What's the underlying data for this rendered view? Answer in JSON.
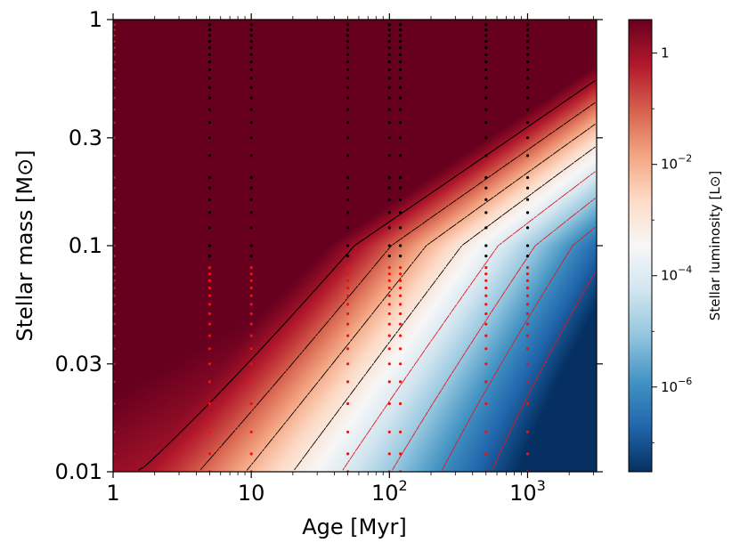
{
  "chart_data": {
    "type": "heatmap",
    "title": "",
    "xlabel": "Age  [Myr]",
    "ylabel": "Stellar mass [M⊙]",
    "xscale": "log",
    "yscale": "log",
    "xlim": [
      1,
      3160
    ],
    "ylim": [
      0.01,
      1
    ],
    "x_ticks": [
      {
        "value": 1,
        "label": "1"
      },
      {
        "value": 10,
        "label": "10"
      },
      {
        "value": 100,
        "label": "10",
        "exp": "2"
      },
      {
        "value": 1000,
        "label": "10",
        "exp": "3"
      }
    ],
    "y_ticks": [
      {
        "value": 1,
        "label": "1"
      },
      {
        "value": 0.3,
        "label": "0.3"
      },
      {
        "value": 0.1,
        "label": "0.1"
      },
      {
        "value": 0.03,
        "label": "0.03"
      },
      {
        "value": 0.01,
        "label": "0.01"
      }
    ],
    "colorbar": {
      "label": "Stellar luminosity [L⊙]",
      "scale": "log",
      "colormap": "RdBu_r",
      "lim": [
        3e-08,
        4
      ],
      "ticks": [
        {
          "value": 1,
          "label": "1"
        },
        {
          "value": 0.01,
          "label": "10",
          "exp": "−2"
        },
        {
          "value": 0.0001,
          "label": "10",
          "exp": "−4"
        },
        {
          "value": 1e-06,
          "label": "10",
          "exp": "−6"
        }
      ]
    },
    "colormap_stops": [
      {
        "t": 0.0,
        "color": "#053061"
      },
      {
        "t": 0.1,
        "color": "#2166ac"
      },
      {
        "t": 0.2,
        "color": "#4393c3"
      },
      {
        "t": 0.3,
        "color": "#92c5de"
      },
      {
        "t": 0.4,
        "color": "#d1e5f0"
      },
      {
        "t": 0.5,
        "color": "#f7f7f7"
      },
      {
        "t": 0.6,
        "color": "#fddbc7"
      },
      {
        "t": 0.7,
        "color": "#f4a582"
      },
      {
        "t": 0.8,
        "color": "#d6604d"
      },
      {
        "t": 0.9,
        "color": "#b2182b"
      },
      {
        "t": 1.0,
        "color": "#67001f"
      }
    ],
    "grid_ages_myr": [
      5,
      10,
      50,
      100,
      120,
      500,
      1000
    ],
    "grid_masses_msun": [
      0.95,
      0.9,
      0.85,
      0.8,
      0.75,
      0.7,
      0.65,
      0.6,
      0.55,
      0.5,
      0.45,
      0.4,
      0.35,
      0.3,
      0.25,
      0.2,
      0.18,
      0.16,
      0.14,
      0.12,
      0.1,
      0.09,
      0.08,
      0.075,
      0.07,
      0.065,
      0.06,
      0.055,
      0.05,
      0.045,
      0.04,
      0.035,
      0.03,
      0.025,
      0.02,
      0.015,
      0.012,
      0.01
    ],
    "deuterium_limit_msun": 0.085,
    "point_colors": {
      "above_limit": "#000000",
      "below_limit": "#ee1111"
    },
    "contour_levels_lsun": [
      1,
      0.1,
      0.01,
      0.001,
      0.0001,
      1e-05,
      1e-06,
      1e-07
    ],
    "contour_styles": {
      "solid_level": 1,
      "black_dashed_min": 0.001,
      "red_dashed_max": 0.0001
    }
  }
}
